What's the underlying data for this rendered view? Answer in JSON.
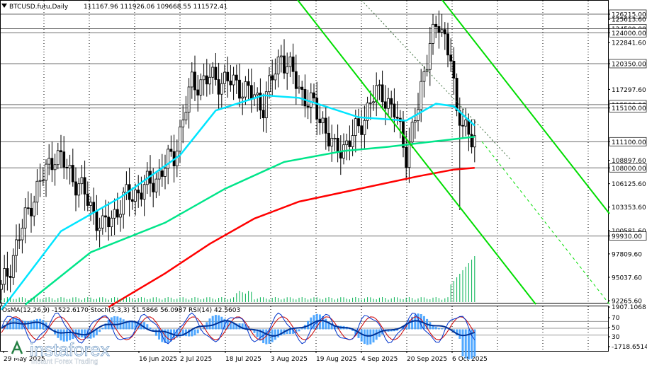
{
  "chart_data": {
    "type": "candlestick",
    "header": {
      "symbol": "BTCUSD.futu,Daily",
      "ohlc": "111167.96 111926.06 109668.55 111572.41"
    },
    "price_axis": {
      "range": [
        92265.66,
        126215
      ],
      "ticks": [
        "126215.00",
        "125613.60",
        "124500.00",
        "124000.00",
        "122841.60",
        "120350.00",
        "117297.60",
        "115500.00",
        "115100.00",
        "111100.00",
        "108897.60",
        "108000.00",
        "106125.60",
        "103353.60",
        "100581.60",
        "99930.00",
        "97809.60",
        "95037.60",
        "92265.60"
      ],
      "highlighted": [
        "126215.00",
        "124500.00",
        "124000.00",
        "120350.00",
        "115500.00",
        "115100.00",
        "111100.00",
        "108000.00",
        "99930.00"
      ]
    },
    "level_lines": [
      126215,
      124500,
      124000,
      120350,
      115500,
      115100,
      111100,
      108000,
      99930
    ],
    "date_axis": [
      "29 May 2025",
      "16 Jun 2025",
      "2 Jul 2025",
      "18 Jul 2025",
      "3 Aug 2025",
      "19 Aug 2025",
      "4 Sep 2025",
      "20 Sep 2025",
      "6 Oct 2025"
    ],
    "key_points": [
      {
        "bar": 0,
        "close": 93500
      },
      {
        "bar": 10,
        "close": 104000
      },
      {
        "bar": 18,
        "close": 109800
      },
      {
        "bar": 26,
        "close": 106000
      },
      {
        "bar": 34,
        "close": 100800
      },
      {
        "bar": 42,
        "close": 104500
      },
      {
        "bar": 50,
        "close": 106000
      },
      {
        "bar": 58,
        "close": 109500
      },
      {
        "bar": 64,
        "close": 118000
      },
      {
        "bar": 72,
        "close": 118600
      },
      {
        "bar": 80,
        "close": 117800
      },
      {
        "bar": 88,
        "close": 115500
      },
      {
        "bar": 94,
        "close": 121500
      },
      {
        "bar": 100,
        "close": 117500
      },
      {
        "bar": 108,
        "close": 113500
      },
      {
        "bar": 112,
        "close": 109800
      },
      {
        "bar": 116,
        "close": 111000
      },
      {
        "bar": 120,
        "close": 112500
      },
      {
        "bar": 124,
        "close": 116000
      },
      {
        "bar": 128,
        "close": 117000
      },
      {
        "bar": 132,
        "close": 114500
      },
      {
        "bar": 136,
        "close": 109800
      },
      {
        "bar": 140,
        "close": 115000
      },
      {
        "bar": 144,
        "close": 123500
      },
      {
        "bar": 147,
        "close": 124500
      },
      {
        "bar": 151,
        "close": 122000
      },
      {
        "bar": 153,
        "close": 113500
      },
      {
        "bar": 156,
        "close": 113000
      },
      {
        "bar": 159,
        "close": 111572
      }
    ],
    "flash_low": {
      "bar": 154,
      "low": 103000
    },
    "moving_averages": [
      {
        "color": "#00e5ff",
        "points": [
          [
            0,
            91200
          ],
          [
            20,
            100500
          ],
          [
            40,
            104500
          ],
          [
            60,
            109500
          ],
          [
            72,
            114800
          ],
          [
            88,
            116600
          ],
          [
            100,
            116300
          ],
          [
            120,
            114000
          ],
          [
            136,
            113600
          ],
          [
            146,
            115600
          ],
          [
            152,
            115300
          ],
          [
            159,
            113000
          ]
        ]
      },
      {
        "color": "#00e58a",
        "points": [
          [
            8,
            91800
          ],
          [
            30,
            98000
          ],
          [
            55,
            101500
          ],
          [
            75,
            105500
          ],
          [
            95,
            108700
          ],
          [
            115,
            110000
          ],
          [
            130,
            110500
          ],
          [
            142,
            111000
          ],
          [
            152,
            111400
          ],
          [
            159,
            111700
          ]
        ]
      },
      {
        "color": "#ff0000",
        "points": [
          [
            36,
            91500
          ],
          [
            55,
            95500
          ],
          [
            70,
            99000
          ],
          [
            85,
            102000
          ],
          [
            100,
            104000
          ],
          [
            120,
            105500
          ],
          [
            140,
            107000
          ],
          [
            152,
            107800
          ],
          [
            159,
            108000
          ]
        ]
      }
    ],
    "trend_lines": [
      {
        "kind": "channel-upper",
        "color": "#00dd00",
        "from": [
          420,
          0
        ],
        "to": [
          756,
          430
        ]
      },
      {
        "kind": "channel-lower",
        "color": "#00dd00",
        "from": [
          624,
          0
        ],
        "to": [
          860,
          302
        ]
      },
      {
        "kind": "channel-dashed",
        "color": "#00aa00",
        "from": [
          510,
          0
        ],
        "to": [
          720,
          225
        ]
      },
      {
        "kind": "projection",
        "color": "#00dd00",
        "from": [
          680,
          200
        ],
        "to": [
          860,
          430
        ]
      }
    ],
    "indicators": {
      "label": "OsMA(12,26,9) -1522.6170  Stoch(5,3,3) 51.5866 56.0987  RSI(14) 42.5603",
      "axis_ticks": [
        "1907.1068",
        "70",
        "50",
        "30",
        "-1718.6514"
      ],
      "osma_range": [
        -1718.6514,
        1907.1068
      ],
      "levels": [
        70,
        50,
        30
      ]
    }
  },
  "watermark": {
    "brand": "instaforex",
    "tagline": "Instant Forex Trading"
  }
}
